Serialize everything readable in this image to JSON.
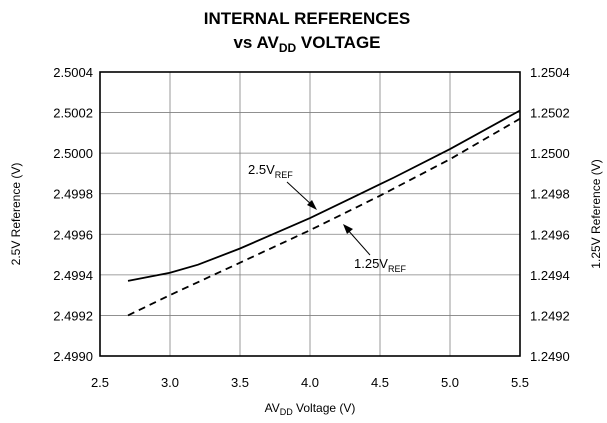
{
  "chart_data": {
    "type": "line",
    "title": {
      "line1": "INTERNAL REFERENCES",
      "line2_prefix": "vs AV",
      "line2_sub": "DD",
      "line2_suffix": " VOLTAGE"
    },
    "xlabel": {
      "prefix": "AV",
      "sub": "DD",
      "suffix": " Voltage (V)"
    },
    "ylabel_left": "2.5V Reference (V)",
    "ylabel_right": "1.25V Reference (V)",
    "xlim": [
      2.5,
      5.5
    ],
    "ylim_left": [
      2.499,
      2.5004
    ],
    "ylim_right": [
      1.249,
      1.2504
    ],
    "x_ticks": [
      "2.5",
      "3.0",
      "3.5",
      "4.0",
      "4.5",
      "5.0",
      "5.5"
    ],
    "y_ticks_left": [
      "2.5004",
      "2.5002",
      "2.5000",
      "2.4998",
      "2.4996",
      "2.4994",
      "2.4992",
      "2.4990"
    ],
    "y_ticks_right": [
      "1.2504",
      "1.2502",
      "1.2500",
      "1.2498",
      "1.2496",
      "1.2494",
      "1.2492",
      "1.2490"
    ],
    "grid": true,
    "series": [
      {
        "name": "2.5V_REF",
        "label_prefix": "2.5V",
        "label_sub": "REF",
        "axis": "left",
        "style": "solid",
        "color": "#000000",
        "x": [
          2.7,
          3.0,
          3.2,
          3.5,
          3.7,
          4.0,
          4.3,
          4.6,
          5.0,
          5.5
        ],
        "y": [
          2.49937,
          2.49941,
          2.49945,
          2.49953,
          2.49959,
          2.49968,
          2.49978,
          2.49988,
          2.50002,
          2.50021
        ]
      },
      {
        "name": "1.25V_REF",
        "label_prefix": "1.25V",
        "label_sub": "REF",
        "axis": "right",
        "style": "dashed",
        "color": "#000000",
        "x": [
          2.7,
          3.0,
          3.5,
          4.0,
          4.5,
          5.0,
          5.5
        ],
        "y": [
          1.2492,
          1.2493,
          1.24946,
          1.24962,
          1.24979,
          1.24997,
          1.25017
        ]
      }
    ]
  }
}
